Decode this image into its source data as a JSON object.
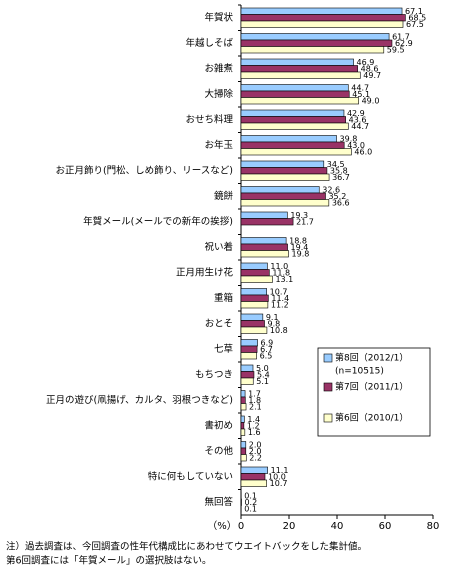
{
  "chart_data": {
    "type": "bar",
    "orientation": "horizontal",
    "categories": [
      "年賀状",
      "年越しそば",
      "お雑煮",
      "大掃除",
      "おせち料理",
      "お年玉",
      "お正月飾り(門松、しめ飾り、リースなど)",
      "鏡餅",
      "年賀メール(メールでの新年の挨拶)",
      "祝い着",
      "正月用生け花",
      "重箱",
      "おとそ",
      "七草",
      "もちつき",
      "正月の遊び(凧揚げ、カルタ、羽根つきなど)",
      "書初め",
      "その他",
      "特に何もしていない",
      "無回答"
    ],
    "series": [
      {
        "name": "第8回（2012/1）",
        "sample_label": "(n=10515)",
        "color": "#99ccff",
        "values": [
          67.1,
          61.7,
          46.9,
          44.7,
          42.9,
          39.8,
          34.5,
          32.6,
          19.3,
          18.8,
          11.0,
          10.7,
          9.1,
          6.9,
          5.0,
          1.7,
          1.4,
          2.0,
          11.1,
          0.1
        ],
        "value_labels": [
          "67.1",
          "61.7",
          "46.9",
          "44.7",
          "42.9",
          "39.8",
          "34.5",
          "32.6",
          "19.3",
          "18.8",
          "11.0",
          "10.7",
          "9.1",
          "6.9",
          "5.0",
          "1.7",
          "1.4",
          "2.0",
          "11.1",
          "0.1"
        ]
      },
      {
        "name": "第7回（2011/1）",
        "color": "#993366",
        "values": [
          68.5,
          62.9,
          48.6,
          45.1,
          43.6,
          43.0,
          35.8,
          35.2,
          21.7,
          19.4,
          11.8,
          11.4,
          9.8,
          6.7,
          5.4,
          1.8,
          1.2,
          2.0,
          10.0,
          0.2
        ],
        "value_labels": [
          "68.5",
          "62.9",
          "48.6",
          "45.1",
          "43.6",
          "43.0",
          "35.8",
          "35.2",
          "21.7",
          "19.4",
          "11.8",
          "11.4",
          "9.8",
          "6.7",
          "5.4",
          "1.8",
          "1.2",
          "2.0",
          "10.0",
          "0.2"
        ]
      },
      {
        "name": "第6回（2010/1）",
        "color": "#ffffcc",
        "values": [
          67.5,
          59.5,
          49.7,
          49.0,
          44.7,
          46.0,
          36.7,
          36.6,
          null,
          19.8,
          13.1,
          11.2,
          10.8,
          6.5,
          5.1,
          2.1,
          1.6,
          2.2,
          10.7,
          0.1
        ],
        "value_labels": [
          "67.5",
          "59.5",
          "49.7",
          "49.0",
          "44.7",
          "46.0",
          "36.7",
          "36.6",
          null,
          "19.8",
          "13.1",
          "11.2",
          "10.8",
          "6.5",
          "5.1",
          "2.1",
          "1.6",
          "2.2",
          "10.7",
          "0.1"
        ]
      }
    ],
    "x_label": "（%）",
    "xlim": [
      0,
      80
    ],
    "xticks": [
      0,
      20,
      40,
      60,
      80
    ],
    "notes": [
      "注）過去調査は、今回調査の性年代構成比にあわせてウエイトバックをした集計値。",
      "第6回調査には「年賀メール」の選択肢はない。"
    ]
  }
}
